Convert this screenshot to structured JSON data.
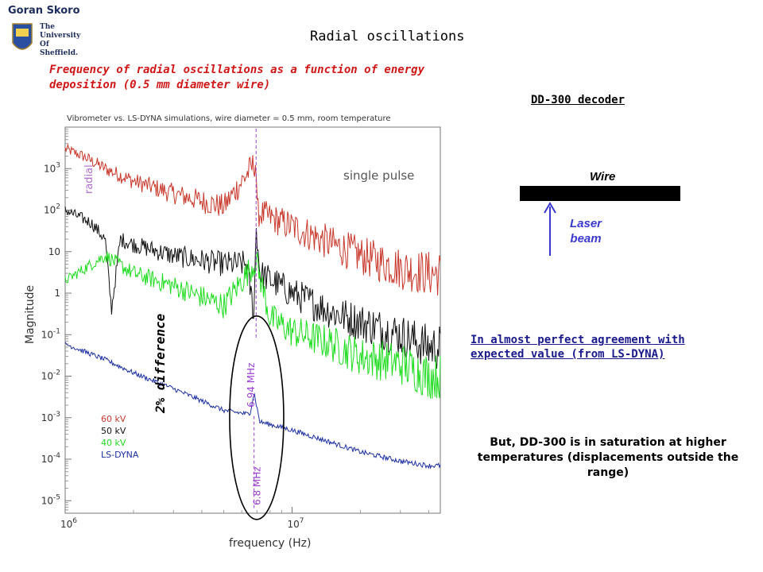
{
  "header": {
    "author": "Goran Skoro",
    "university": [
      "The",
      "University",
      "Of",
      "Sheffield."
    ],
    "title": "Radial oscillations",
    "subtitle": "Frequency of radial oscillations as a function of energy deposition (0.5 mm diameter wire)"
  },
  "diagram": {
    "decoder_title": "DD-300 decoder",
    "wire_label": "Wire",
    "laser_label": "Laser beam"
  },
  "notes": {
    "agreement": "In almost perfect agreement with expected value (from LS-DYNA)",
    "saturation": "But, DD-300 is in saturation at higher temperatures (displacements outside the range)",
    "difference": "2% difference"
  },
  "colors": {
    "red": "#c8382c",
    "black": "#111111",
    "green": "#1fdc1f",
    "blue": "#1c2fa0",
    "marker": "#9a3fd0",
    "subtitle": "#d01818"
  },
  "chart_data": {
    "type": "line",
    "title": "Vibrometer vs. LS-DYNA simulations, wire diameter = 0.5 mm, room temperature",
    "xlabel": "frequency (Hz)",
    "ylabel": "Magnitude",
    "x_scale": "log",
    "y_scale": "log",
    "xlim": [
      1000000,
      45000000
    ],
    "ylim": [
      5e-06,
      10000
    ],
    "x_tick_labels": [
      {
        "v": 1000000,
        "t": "10^6"
      },
      {
        "v": 10000000,
        "t": "10^7"
      }
    ],
    "y_tick_labels": [
      {
        "v": 1000,
        "t": "10^3"
      },
      {
        "v": 100,
        "t": "10^2"
      },
      {
        "v": 10,
        "t": "10"
      },
      {
        "v": 1,
        "t": "1"
      },
      {
        "v": 0.1,
        "t": "10^-1"
      },
      {
        "v": 0.01,
        "t": "10^-2"
      },
      {
        "v": 0.001,
        "t": "10^-3"
      },
      {
        "v": 0.0001,
        "t": "10^-4"
      },
      {
        "v": 1e-05,
        "t": "10^-5"
      }
    ],
    "annotations": {
      "single_pulse": "single pulse",
      "radial": "radial",
      "marker_top": "6.94 MHz",
      "marker_bottom": "6.8 MHz",
      "marker_top_x": 6940000,
      "marker_bottom_x": 6800000
    },
    "legend_position": "lower-left",
    "series": [
      {
        "name": "60 kV",
        "color": "#c8382c",
        "points": [
          [
            1000000,
            3000
          ],
          [
            1200000,
            2000
          ],
          [
            1500000,
            1000
          ],
          [
            2000000,
            500
          ],
          [
            3000000,
            250
          ],
          [
            5000000,
            120
          ],
          [
            6940000,
            1500
          ],
          [
            7000000,
            90
          ],
          [
            10000000,
            40
          ],
          [
            15000000,
            15
          ],
          [
            20000000,
            8
          ],
          [
            30000000,
            4
          ],
          [
            40000000,
            3
          ]
        ]
      },
      {
        "name": "50 kV",
        "color": "#111111",
        "points": [
          [
            1000000,
            100
          ],
          [
            1300000,
            50
          ],
          [
            1500000,
            20
          ],
          [
            1600000,
            0.4
          ],
          [
            1750000,
            20
          ],
          [
            2000000,
            15
          ],
          [
            3000000,
            8
          ],
          [
            5000000,
            5
          ],
          [
            6300000,
            5
          ],
          [
            6800000,
            0.3
          ],
          [
            6940000,
            50
          ],
          [
            7200000,
            3
          ],
          [
            10000000,
            1
          ],
          [
            15000000,
            0.35
          ],
          [
            20000000,
            0.2
          ],
          [
            30000000,
            0.1
          ],
          [
            40000000,
            0.05
          ]
        ]
      },
      {
        "name": "40 kV",
        "color": "#1fdc1f",
        "points": [
          [
            1000000,
            2
          ],
          [
            1500000,
            8
          ],
          [
            2000000,
            3
          ],
          [
            3000000,
            1.5
          ],
          [
            5000000,
            0.5
          ],
          [
            6940000,
            6
          ],
          [
            8000000,
            0.25
          ],
          [
            10000000,
            0.12
          ],
          [
            15000000,
            0.06
          ],
          [
            20000000,
            0.03
          ],
          [
            30000000,
            0.02
          ],
          [
            40000000,
            0.01
          ]
        ]
      },
      {
        "name": "LS-DYNA",
        "color": "#1c2fa0",
        "points": [
          [
            1000000,
            0.06
          ],
          [
            1500000,
            0.025
          ],
          [
            2000000,
            0.012
          ],
          [
            3000000,
            0.005
          ],
          [
            5000000,
            0.0015
          ],
          [
            6500000,
            0.0012
          ],
          [
            6800000,
            0.004
          ],
          [
            7200000,
            0.0008
          ],
          [
            10000000,
            0.0005
          ],
          [
            15000000,
            0.00025
          ],
          [
            20000000,
            0.00015
          ],
          [
            30000000,
            9e-05
          ],
          [
            40000000,
            7e-05
          ]
        ]
      }
    ]
  }
}
